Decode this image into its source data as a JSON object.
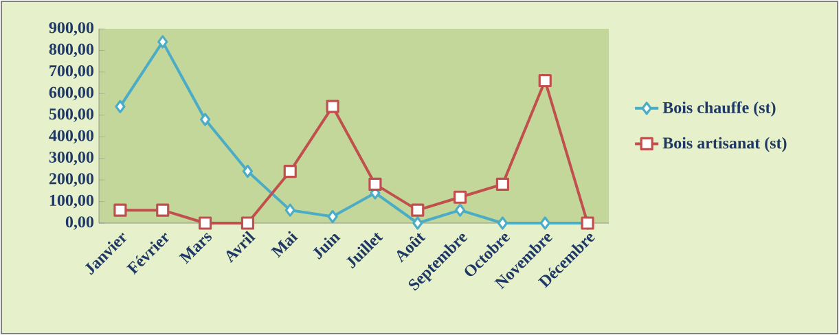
{
  "chart_data": {
    "type": "line",
    "categories": [
      "Janvier",
      "Février",
      "Mars",
      "Avril",
      "Mai",
      "Juin",
      "Juillet",
      "Août",
      "Septembre",
      "Octobre",
      "Novembre",
      "Décembre"
    ],
    "series": [
      {
        "name": "Bois chauffe (st)",
        "color": "#4bacc6",
        "marker": "diamond",
        "values": [
          540,
          840,
          480,
          240,
          60,
          30,
          140,
          0,
          60,
          0,
          0,
          0
        ]
      },
      {
        "name": "Bois artisanat (st)",
        "color": "#c0504d",
        "marker": "square",
        "values": [
          60,
          60,
          0,
          0,
          240,
          540,
          180,
          60,
          120,
          180,
          660,
          0
        ]
      }
    ],
    "ylim": [
      0,
      900
    ],
    "yticks": [
      {
        "value": 0,
        "label": "0,00"
      },
      {
        "value": 100,
        "label": "100,00"
      },
      {
        "value": 200,
        "label": "200,00"
      },
      {
        "value": 300,
        "label": "300,00"
      },
      {
        "value": 400,
        "label": "400,00"
      },
      {
        "value": 500,
        "label": "500,00"
      },
      {
        "value": 600,
        "label": "600,00"
      },
      {
        "value": 700,
        "label": "700,00"
      },
      {
        "value": 800,
        "label": "800,00"
      },
      {
        "value": 900,
        "label": "900,00"
      }
    ],
    "grid": false,
    "legend": "right"
  }
}
